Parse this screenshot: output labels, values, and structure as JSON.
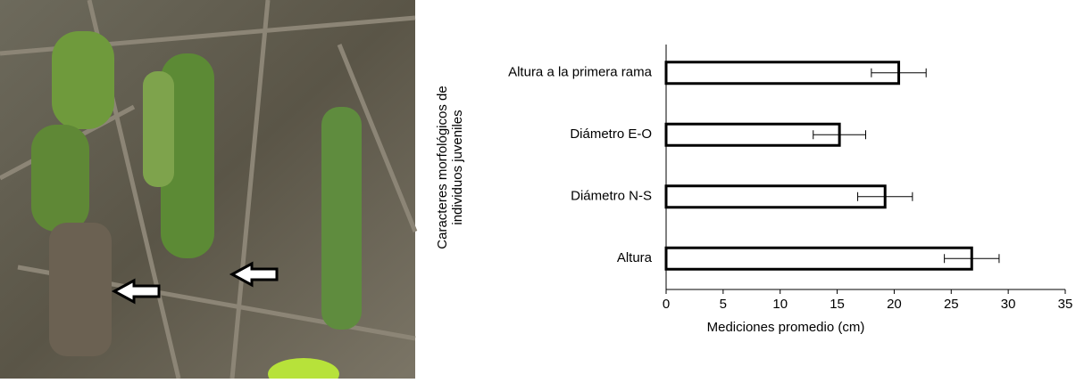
{
  "chart_data": {
    "type": "bar",
    "orientation": "horizontal",
    "categories": [
      "Altura",
      "Diámetro N-S",
      "Diámetro E-O",
      "Altura a la primera rama"
    ],
    "values": [
      26.8,
      19.2,
      15.2,
      20.4
    ],
    "errors": [
      2.4,
      2.4,
      2.3,
      2.4
    ],
    "color": "#ffffff",
    "xlabel": "Mediciones promedio (cm)",
    "ylabel": [
      "Caracteres morfológicos de",
      "individuos juveniles"
    ],
    "xlim": [
      0,
      35
    ],
    "xticks": [
      0,
      5,
      10,
      15,
      20,
      25,
      30,
      35
    ],
    "grid": false
  }
}
